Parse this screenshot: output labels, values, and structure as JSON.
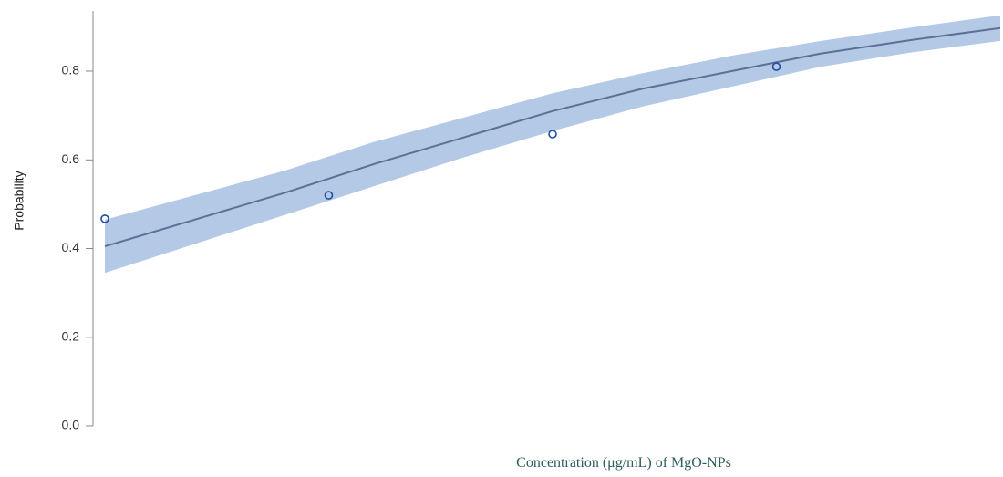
{
  "chart_data": {
    "type": "line",
    "xlabel": "Concentration (μg/mL) of MgO-NPs",
    "ylabel": "Probability",
    "ylim": [
      0.0,
      0.93
    ],
    "y_ticks": [
      "0.0",
      "0.2",
      "0.4",
      "0.6",
      "0.8"
    ],
    "y_tick_values": [
      0.0,
      0.2,
      0.4,
      0.6,
      0.8
    ],
    "xlim": [
      0,
      1
    ],
    "x_ticks": [],
    "grid": false,
    "series": [
      {
        "kind": "fit",
        "x": [
          0.0,
          0.1,
          0.2,
          0.3,
          0.4,
          0.5,
          0.6,
          0.7,
          0.8,
          0.9,
          1.0
        ],
        "y": [
          0.405,
          0.465,
          0.525,
          0.59,
          0.65,
          0.71,
          0.76,
          0.8,
          0.84,
          0.87,
          0.897
        ],
        "lower": [
          0.345,
          0.41,
          0.475,
          0.54,
          0.605,
          0.665,
          0.72,
          0.765,
          0.81,
          0.842,
          0.868
        ],
        "upper": [
          0.465,
          0.52,
          0.575,
          0.64,
          0.695,
          0.75,
          0.795,
          0.835,
          0.868,
          0.898,
          0.926
        ]
      },
      {
        "kind": "observed",
        "x": [
          0.0,
          0.25,
          0.5,
          0.75
        ],
        "y": [
          0.467,
          0.52,
          0.658,
          0.81
        ]
      }
    ],
    "colors": {
      "band": "#b3c9e6",
      "line": "#5c7194",
      "point": "#1f4ea3",
      "axis": "#888888"
    }
  }
}
